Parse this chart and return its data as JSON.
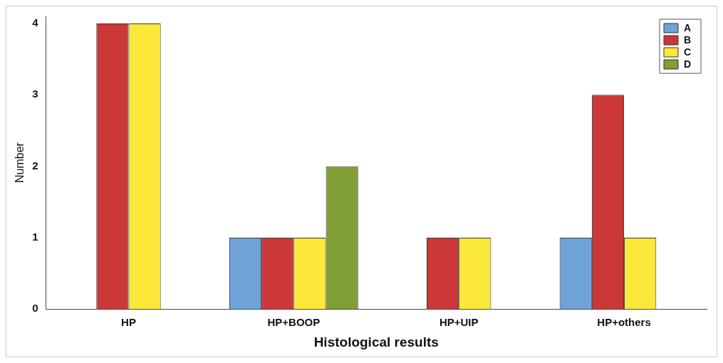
{
  "chart_data": {
    "type": "bar",
    "xlabel": "Histological results",
    "ylabel": "Number",
    "categories": [
      "HP",
      "HP+BOOP",
      "HP+UIP",
      "HP+others"
    ],
    "series": [
      {
        "name": "A",
        "color": "#6fa3d8",
        "values": [
          0,
          1,
          0,
          1
        ]
      },
      {
        "name": "B",
        "color": "#cc3838",
        "values": [
          4,
          1,
          1,
          3
        ]
      },
      {
        "name": "C",
        "color": "#fce83a",
        "values": [
          4,
          1,
          1,
          1
        ]
      },
      {
        "name": "D",
        "color": "#7f9f35",
        "values": [
          0,
          2,
          0,
          0
        ]
      }
    ],
    "ylim": [
      0,
      4.1
    ],
    "yticks": [
      0,
      1,
      2,
      3,
      4
    ],
    "grid": false,
    "legend": "top right"
  }
}
